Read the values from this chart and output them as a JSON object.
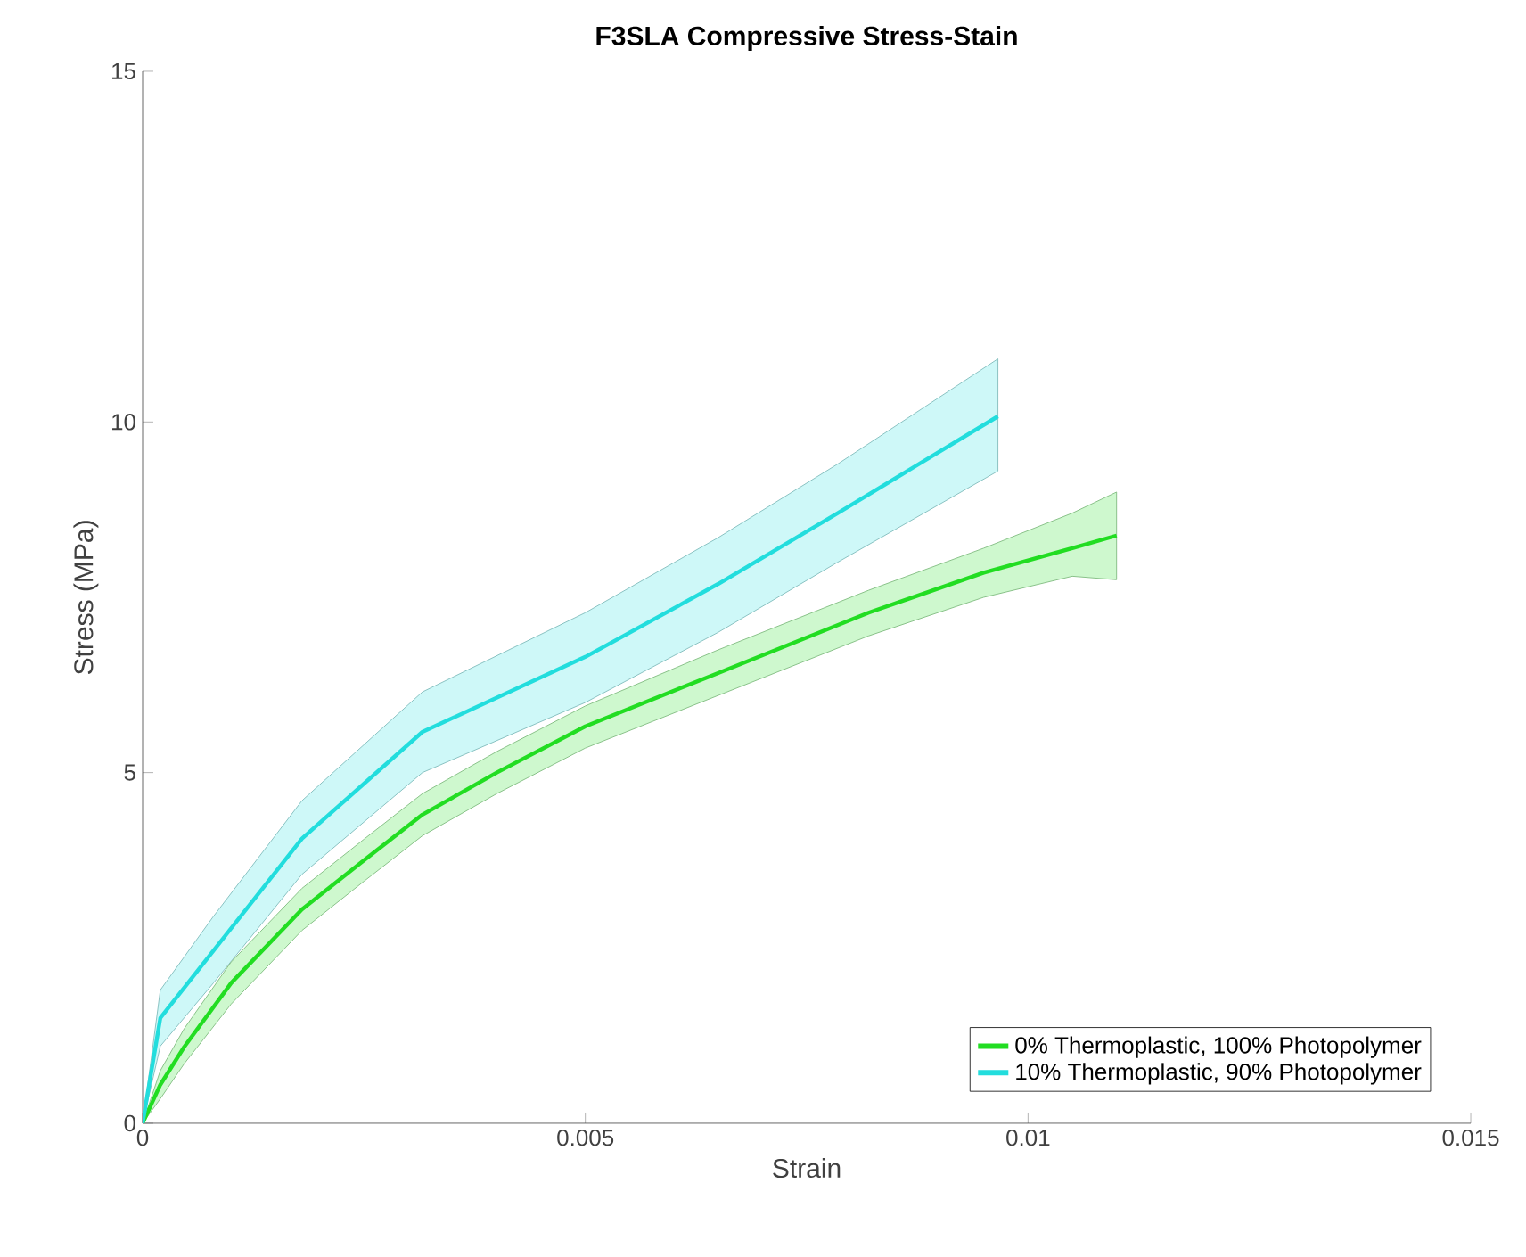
{
  "chart_data": {
    "type": "line",
    "title": "**F3SLA Compressive Stress-Stain**",
    "xlabel": "Strain",
    "ylabel": "Stress (MPa)",
    "xlim": [
      0,
      0.015
    ],
    "xticks": [
      0,
      0.005,
      0.01,
      0.015
    ],
    "ylim": [
      0,
      15
    ],
    "yticks": [
      0,
      5,
      10,
      15
    ],
    "legend": "bottom right",
    "grid": false,
    "marker": "none",
    "line_style": "solid",
    "series": [
      {
        "name": "0% Thermoplastic, 100% Photopolymer",
        "color": "#22dd22",
        "x": [
          0,
          0.0002,
          0.00047,
          0.001,
          0.0018,
          0.0025,
          0.00316,
          0.004,
          0.005,
          0.0065,
          0.0082,
          0.0095,
          0.0105,
          0.011
        ],
        "values": [
          0,
          0.55,
          1.09,
          2.0,
          3.05,
          3.75,
          4.4,
          5.0,
          5.66,
          6.42,
          7.28,
          7.85,
          8.2,
          8.38
        ],
        "lower": [
          0,
          0.35,
          0.85,
          1.7,
          2.75,
          3.45,
          4.1,
          4.7,
          5.35,
          6.1,
          6.95,
          7.5,
          7.8,
          7.75
        ],
        "upper": [
          0,
          0.75,
          1.35,
          2.3,
          3.35,
          4.05,
          4.7,
          5.3,
          5.95,
          6.75,
          7.6,
          8.2,
          8.7,
          9.0
        ]
      },
      {
        "name": "10% Thermoplastic, 90% Photopolymer",
        "color": "#22dddd",
        "x": [
          0,
          0.0002,
          0.0008,
          0.0018,
          0.00316,
          0.005,
          0.0065,
          0.00785,
          0.00966
        ],
        "values": [
          0,
          1.5,
          2.46,
          4.06,
          5.58,
          6.65,
          7.69,
          8.7,
          10.08
        ],
        "lower": [
          0,
          1.1,
          2.0,
          3.55,
          5.0,
          6.0,
          7.0,
          8.0,
          9.3
        ],
        "upper": [
          0,
          1.9,
          2.95,
          4.6,
          6.15,
          7.28,
          8.35,
          9.4,
          10.9
        ]
      }
    ]
  }
}
